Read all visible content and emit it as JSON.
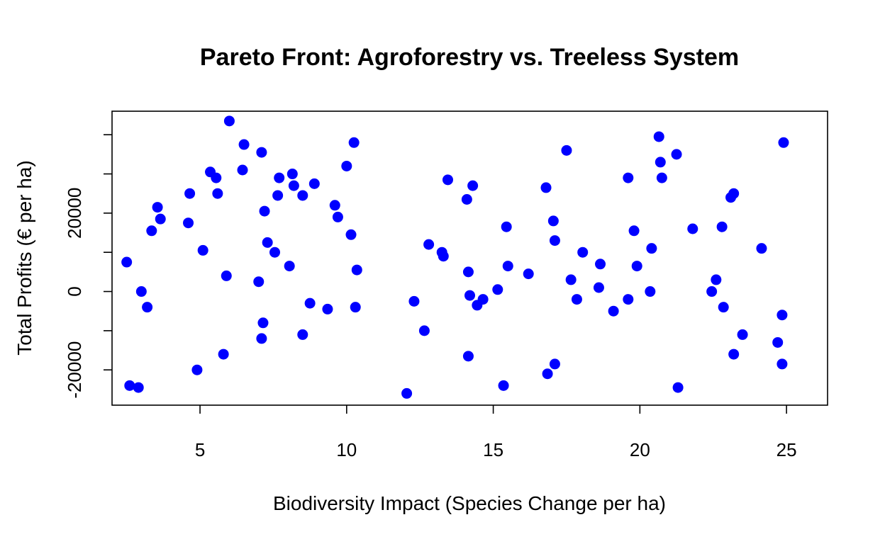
{
  "chart_data": {
    "type": "scatter",
    "title": "Pareto Front: Agroforestry vs. Treeless System",
    "xlabel": "Biodiversity Impact (Species Change per ha)",
    "ylabel": "Total Profits (€ per ha)",
    "xlim": [
      2.0,
      26.4
    ],
    "ylim": [
      -29000,
      46000
    ],
    "xticks": [
      5,
      10,
      15,
      20,
      25
    ],
    "yticks": [
      -20000,
      0,
      20000
    ],
    "ytick_labels": [
      "-20000",
      "0",
      "20000"
    ],
    "yticks_unlabeled": [
      -10000,
      10000,
      30000,
      40000
    ],
    "grid": false,
    "legend": "none",
    "marker_color": "#0000ff",
    "points": [
      {
        "x": 2.5,
        "y": 7500
      },
      {
        "x": 2.6,
        "y": -24000
      },
      {
        "x": 2.9,
        "y": -24500
      },
      {
        "x": 3.0,
        "y": 0
      },
      {
        "x": 3.2,
        "y": -4000
      },
      {
        "x": 3.35,
        "y": 15500
      },
      {
        "x": 3.55,
        "y": 21500
      },
      {
        "x": 3.65,
        "y": 18500
      },
      {
        "x": 4.6,
        "y": 17500
      },
      {
        "x": 4.65,
        "y": 25000
      },
      {
        "x": 4.9,
        "y": -20000
      },
      {
        "x": 5.1,
        "y": 10500
      },
      {
        "x": 5.35,
        "y": 30500
      },
      {
        "x": 5.55,
        "y": 29000
      },
      {
        "x": 5.6,
        "y": 25000
      },
      {
        "x": 5.8,
        "y": -16000
      },
      {
        "x": 5.9,
        "y": 4000
      },
      {
        "x": 6.0,
        "y": 43500
      },
      {
        "x": 6.45,
        "y": 31000
      },
      {
        "x": 6.5,
        "y": 37500
      },
      {
        "x": 7.0,
        "y": 2500
      },
      {
        "x": 7.1,
        "y": -12000
      },
      {
        "x": 7.1,
        "y": 35500
      },
      {
        "x": 7.15,
        "y": -8000
      },
      {
        "x": 7.2,
        "y": 20500
      },
      {
        "x": 7.3,
        "y": 12500
      },
      {
        "x": 7.55,
        "y": 10000
      },
      {
        "x": 7.65,
        "y": 24500
      },
      {
        "x": 7.7,
        "y": 29000
      },
      {
        "x": 8.05,
        "y": 6500
      },
      {
        "x": 8.15,
        "y": 30000
      },
      {
        "x": 8.2,
        "y": 27000
      },
      {
        "x": 8.5,
        "y": 24500
      },
      {
        "x": 8.5,
        "y": -11000
      },
      {
        "x": 8.75,
        "y": -3000
      },
      {
        "x": 8.9,
        "y": 27500
      },
      {
        "x": 9.35,
        "y": -4500
      },
      {
        "x": 9.6,
        "y": 22000
      },
      {
        "x": 9.7,
        "y": 19000
      },
      {
        "x": 10.0,
        "y": 32000
      },
      {
        "x": 10.15,
        "y": 14500
      },
      {
        "x": 10.25,
        "y": 38000
      },
      {
        "x": 10.3,
        "y": -4000
      },
      {
        "x": 10.35,
        "y": 5500
      },
      {
        "x": 12.05,
        "y": -26000
      },
      {
        "x": 12.3,
        "y": -2500
      },
      {
        "x": 12.65,
        "y": -10000
      },
      {
        "x": 12.8,
        "y": 12000
      },
      {
        "x": 13.25,
        "y": 10000
      },
      {
        "x": 13.3,
        "y": 9000
      },
      {
        "x": 13.45,
        "y": 28500
      },
      {
        "x": 14.1,
        "y": 23500
      },
      {
        "x": 14.15,
        "y": 5000
      },
      {
        "x": 14.15,
        "y": -16500
      },
      {
        "x": 14.2,
        "y": -1000
      },
      {
        "x": 14.3,
        "y": 27000
      },
      {
        "x": 14.45,
        "y": -3500
      },
      {
        "x": 14.65,
        "y": -2000
      },
      {
        "x": 15.15,
        "y": 500
      },
      {
        "x": 15.35,
        "y": -24000
      },
      {
        "x": 15.45,
        "y": 16500
      },
      {
        "x": 15.5,
        "y": 6500
      },
      {
        "x": 16.2,
        "y": 4500
      },
      {
        "x": 16.8,
        "y": 26500
      },
      {
        "x": 16.85,
        "y": -21000
      },
      {
        "x": 17.05,
        "y": 18000
      },
      {
        "x": 17.1,
        "y": 13000
      },
      {
        "x": 17.1,
        "y": -18500
      },
      {
        "x": 17.5,
        "y": 36000
      },
      {
        "x": 17.65,
        "y": 3000
      },
      {
        "x": 17.85,
        "y": -2000
      },
      {
        "x": 18.05,
        "y": 10000
      },
      {
        "x": 18.6,
        "y": 1000
      },
      {
        "x": 18.65,
        "y": 7000
      },
      {
        "x": 19.1,
        "y": -5000
      },
      {
        "x": 19.6,
        "y": -2000
      },
      {
        "x": 19.6,
        "y": 29000
      },
      {
        "x": 19.8,
        "y": 15500
      },
      {
        "x": 19.9,
        "y": 6500
      },
      {
        "x": 20.35,
        "y": 0
      },
      {
        "x": 20.4,
        "y": 11000
      },
      {
        "x": 20.65,
        "y": 39500
      },
      {
        "x": 20.7,
        "y": 33000
      },
      {
        "x": 20.75,
        "y": 29000
      },
      {
        "x": 21.25,
        "y": 35000
      },
      {
        "x": 21.3,
        "y": -24500
      },
      {
        "x": 21.8,
        "y": 16000
      },
      {
        "x": 22.45,
        "y": 0
      },
      {
        "x": 22.6,
        "y": 3000
      },
      {
        "x": 22.8,
        "y": 16500
      },
      {
        "x": 22.85,
        "y": -4000
      },
      {
        "x": 23.1,
        "y": 24000
      },
      {
        "x": 23.2,
        "y": 25000
      },
      {
        "x": 23.2,
        "y": -16000
      },
      {
        "x": 23.5,
        "y": -11000
      },
      {
        "x": 24.15,
        "y": 11000
      },
      {
        "x": 24.7,
        "y": -13000
      },
      {
        "x": 24.85,
        "y": -18500
      },
      {
        "x": 24.85,
        "y": -6000
      },
      {
        "x": 24.9,
        "y": 38000
      }
    ]
  }
}
